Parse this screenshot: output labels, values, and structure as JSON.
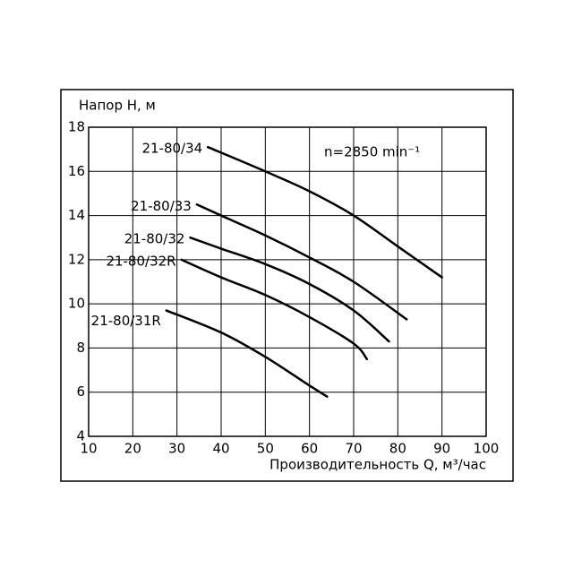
{
  "chart_data": {
    "type": "line",
    "y_label": "Напор H, м",
    "x_label": "Производительность Q, м³/час",
    "annotation": "n=2850 min⁻¹",
    "xlim": [
      10,
      100
    ],
    "xticks": [
      10,
      20,
      30,
      40,
      50,
      60,
      70,
      80,
      90,
      100
    ],
    "ylim": [
      4,
      18
    ],
    "yticks": [
      4,
      6,
      8,
      10,
      12,
      14,
      16,
      18
    ],
    "grid": true,
    "series": [
      {
        "name": "21-80/34",
        "color": "#000000",
        "x": [
          37,
          50,
          60,
          70,
          80,
          90
        ],
        "values": [
          17.1,
          16,
          15.1,
          14,
          12.6,
          11.2
        ]
      },
      {
        "name": "21-80/33",
        "color": "#000000",
        "x": [
          34.5,
          40,
          50,
          60,
          70,
          82
        ],
        "values": [
          14.5,
          14,
          13.1,
          12.1,
          11,
          9.3
        ]
      },
      {
        "name": "21-80/32",
        "color": "#000000",
        "x": [
          33,
          40,
          50,
          60,
          70,
          78
        ],
        "values": [
          13,
          12.5,
          11.8,
          10.9,
          9.7,
          8.3
        ]
      },
      {
        "name": "21-80/32R",
        "color": "#000000",
        "x": [
          31,
          40,
          50,
          60,
          70,
          73
        ],
        "values": [
          12,
          11.2,
          10.4,
          9.4,
          8.2,
          7.5
        ]
      },
      {
        "name": "21-80/31R",
        "color": "#000000",
        "x": [
          27.6,
          40,
          50,
          60,
          64
        ],
        "values": [
          9.7,
          8.7,
          7.6,
          6.3,
          5.8
        ]
      }
    ]
  }
}
